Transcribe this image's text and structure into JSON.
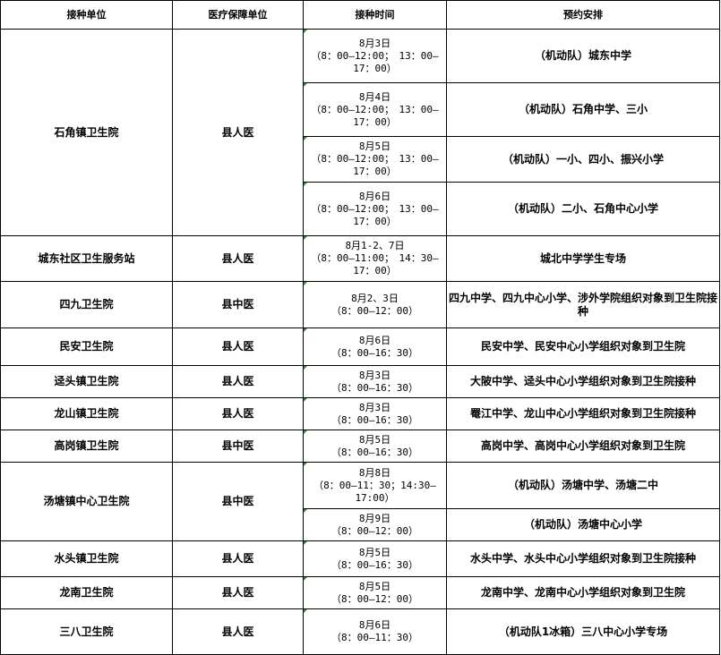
{
  "headers": [
    "接种单位",
    "医疗保障单位",
    "接种时间",
    "预约安排"
  ],
  "units": [
    {
      "name": "石角镇卫生院",
      "medical": "县人医",
      "slots": [
        {
          "date": "8月3日",
          "time": "（8：00—12:00；　13：00—17：00）",
          "arrangement": "（机动队）城东中学"
        },
        {
          "date": "8月4日",
          "time": "（8：00—12:00；　13：00—17：00）",
          "arrangement": "（机动队）石角中学、三小"
        },
        {
          "date": "8月5日",
          "time": "（8：00—12:00；　13：00—17：00）",
          "arrangement": "（机动队）一小、四小、振兴小学"
        },
        {
          "date": "8月6日",
          "time": "（8：00—12:00；　13：00—17：00）",
          "arrangement": "（机动队）二小、石角中心小学"
        }
      ]
    },
    {
      "name": "城东社区卫生服务站",
      "medical": "县人医",
      "slots": [
        {
          "date": "8月1-2、7日",
          "time": "（8：00—11:00；　14：30—17：00）",
          "arrangement": "城北中学学生专场"
        }
      ]
    },
    {
      "name": "四九卫生院",
      "medical": "县中医",
      "slots": [
        {
          "date": "8月2、3日",
          "time": "（8：00—12：00）",
          "arrangement": "四九中学、四九中心小学、涉外学院组织对象到卫生院接种"
        }
      ]
    },
    {
      "name": "民安卫生院",
      "medical": "县人医",
      "slots": [
        {
          "date": "8月6日",
          "time": "（8：00—16：30）",
          "arrangement": "民安中学、民安中心小学组织对象到卫生院"
        }
      ]
    },
    {
      "name": "迳头镇卫生院",
      "medical": "县人医",
      "slots": [
        {
          "date": "8月3日",
          "time": "（8：00—16：30）",
          "arrangement": "大陂中学、迳头中心小学组织对象到卫生院接种"
        }
      ]
    },
    {
      "name": "龙山镇卫生院",
      "medical": "县人医",
      "slots": [
        {
          "date": "8月3日",
          "time": "（8：00—16：30）",
          "arrangement": "罨江中学、龙山中心小学组织对象到卫生院接种"
        }
      ]
    },
    {
      "name": "高岗镇卫生院",
      "medical": "县中医",
      "slots": [
        {
          "date": "8月5日",
          "time": "（8：00—16：30）",
          "arrangement": "高岗中学、高岗中心小学组织对象到卫生院"
        }
      ]
    },
    {
      "name": "汤塘镇中心卫生院",
      "medical": "县中医",
      "slots": [
        {
          "date": "8月8日",
          "time": "（8：00—11：30；14:30—17:00）",
          "arrangement": "（机动队）汤塘中学、汤塘二中"
        },
        {
          "date": "8月9日",
          "time": "（8：00—12：00）",
          "arrangement": "（机动队）汤塘中心小学"
        }
      ]
    },
    {
      "name": "水头镇卫生院",
      "medical": "县人医",
      "slots": [
        {
          "date": "8月5日",
          "time": "（8：00—16：30）",
          "arrangement": "水头中学、水头中心小学组织对象到卫生院接种"
        }
      ]
    },
    {
      "name": "龙南卫生院",
      "medical": "县人医",
      "slots": [
        {
          "date": "8月5日",
          "time": "（8：00—12：00）",
          "arrangement": "龙南中学、龙南中心小学组织对象到卫生院"
        }
      ]
    },
    {
      "name": "三八卫生院",
      "medical": "县人医",
      "slots": [
        {
          "date": "8月6日",
          "time": "（8：00—11：30）",
          "arrangement": "（机动队1冰箱）三八中心小学专场"
        }
      ]
    }
  ]
}
